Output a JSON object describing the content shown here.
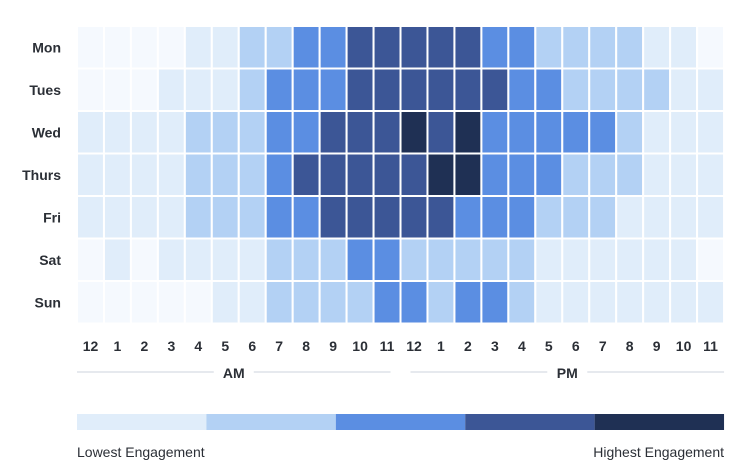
{
  "chart_data": {
    "type": "heatmap",
    "title": "",
    "days": [
      "Mon",
      "Tues",
      "Wed",
      "Thurs",
      "Fri",
      "Sat",
      "Sun"
    ],
    "hours": [
      "12",
      "1",
      "2",
      "3",
      "4",
      "5",
      "6",
      "7",
      "8",
      "9",
      "10",
      "11",
      "12",
      "1",
      "2",
      "3",
      "4",
      "5",
      "6",
      "7",
      "8",
      "9",
      "10",
      "11"
    ],
    "periods": [
      "AM",
      "PM"
    ],
    "levels": [
      [
        0,
        0,
        0,
        0,
        1,
        1,
        2,
        2,
        3,
        3,
        4,
        4,
        4,
        4,
        4,
        3,
        3,
        2,
        2,
        2,
        2,
        1,
        1,
        0
      ],
      [
        0,
        0,
        0,
        1,
        1,
        1,
        2,
        3,
        3,
        3,
        4,
        4,
        4,
        4,
        4,
        4,
        3,
        3,
        2,
        2,
        2,
        2,
        1,
        1
      ],
      [
        1,
        1,
        1,
        1,
        2,
        2,
        2,
        3,
        3,
        4,
        4,
        4,
        5,
        4,
        5,
        3,
        3,
        3,
        3,
        3,
        2,
        1,
        1,
        1
      ],
      [
        1,
        1,
        1,
        1,
        2,
        2,
        2,
        3,
        4,
        4,
        4,
        4,
        4,
        5,
        5,
        3,
        3,
        3,
        2,
        2,
        2,
        1,
        1,
        1
      ],
      [
        1,
        1,
        1,
        1,
        2,
        2,
        2,
        3,
        3,
        4,
        4,
        4,
        4,
        4,
        3,
        3,
        3,
        2,
        2,
        2,
        1,
        1,
        1,
        1
      ],
      [
        0,
        1,
        0,
        1,
        1,
        1,
        1,
        2,
        2,
        2,
        3,
        3,
        2,
        2,
        2,
        2,
        2,
        1,
        1,
        1,
        1,
        1,
        1,
        0
      ],
      [
        0,
        0,
        0,
        0,
        0,
        1,
        1,
        2,
        2,
        2,
        2,
        3,
        3,
        2,
        3,
        3,
        2,
        1,
        1,
        1,
        1,
        1,
        1,
        1
      ]
    ],
    "level_colors": [
      "#f5f9fe",
      "#e0edfa",
      "#b3d1f4",
      "#5b8ee2",
      "#3c5696",
      "#1f3054"
    ],
    "legend": {
      "low_label": "Lowest Engagement",
      "high_label": "Highest Engagement",
      "colors": [
        "#e0edfa",
        "#b3d1f4",
        "#5b8ee2",
        "#3c5696",
        "#1f3054"
      ]
    }
  }
}
